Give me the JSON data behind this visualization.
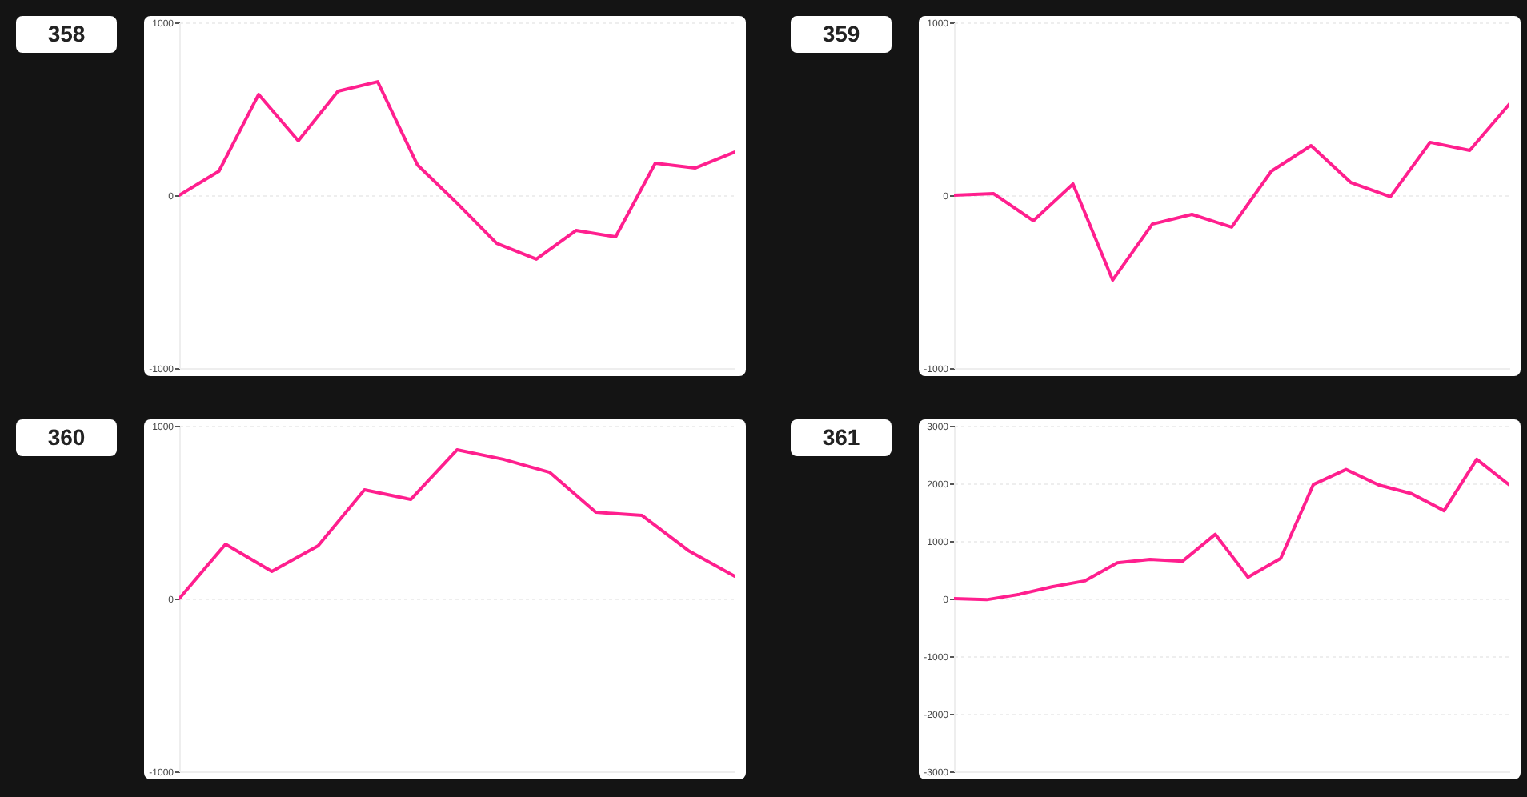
{
  "chart_data": [
    {
      "type": "line",
      "title": "358",
      "categories": [
        null,
        null,
        null,
        null,
        null,
        null,
        null,
        null,
        null,
        null,
        null,
        null,
        null,
        null,
        null
      ],
      "series": [
        {
          "color": "#ff1f8e",
          "values": [
            0,
            139,
            583,
            315,
            602,
            657,
            176,
            -46,
            -278,
            -370,
            -204,
            -241,
            185,
            157,
            250
          ]
        }
      ],
      "ylim": [
        -1000,
        1000
      ],
      "yticks": [
        -1000,
        0,
        1000
      ],
      "grid": "y",
      "tick_labels": "y"
    },
    {
      "type": "line",
      "title": "359",
      "categories": [
        null,
        null,
        null,
        null,
        null,
        null,
        null,
        null,
        null,
        null,
        null,
        null,
        null,
        null,
        null
      ],
      "series": [
        {
          "color": "#ff1f8e",
          "values": [
            0,
            9,
            -148,
            65,
            -491,
            -167,
            -111,
            -185,
            139,
            287,
            74,
            -9,
            306,
            259,
            528
          ]
        }
      ],
      "ylim": [
        -1000,
        1000
      ],
      "yticks": [
        -1000,
        0,
        1000
      ],
      "grid": "y",
      "tick_labels": "y"
    },
    {
      "type": "line",
      "title": "360",
      "categories": [
        null,
        null,
        null,
        null,
        null,
        null,
        null,
        null,
        null,
        null,
        null,
        null,
        null
      ],
      "series": [
        {
          "color": "#ff1f8e",
          "values": [
            0,
            315,
            157,
            306,
            630,
            574,
            861,
            806,
            731,
            500,
            481,
            278,
            130
          ]
        }
      ],
      "ylim": [
        -1000,
        1000
      ],
      "yticks": [
        -1000,
        0,
        1000
      ],
      "grid": "y",
      "tick_labels": "y"
    },
    {
      "type": "line",
      "title": "361",
      "categories": [
        null,
        null,
        null,
        null,
        null,
        null,
        null,
        null,
        null,
        null,
        null,
        null,
        null,
        null,
        null,
        null,
        null,
        null
      ],
      "series": [
        {
          "color": "#ff1f8e",
          "values": [
            0,
            -19,
            74,
            205,
            307,
            623,
            679,
            651,
            1116,
            372,
            698,
            1981,
            2242,
            1972,
            1823,
            1526,
            2419,
            1972
          ]
        }
      ],
      "ylim": [
        -3000,
        3000
      ],
      "yticks": [
        -3000,
        -2000,
        -1000,
        0,
        1000,
        2000,
        3000
      ],
      "grid": "y",
      "tick_labels": "y"
    }
  ]
}
